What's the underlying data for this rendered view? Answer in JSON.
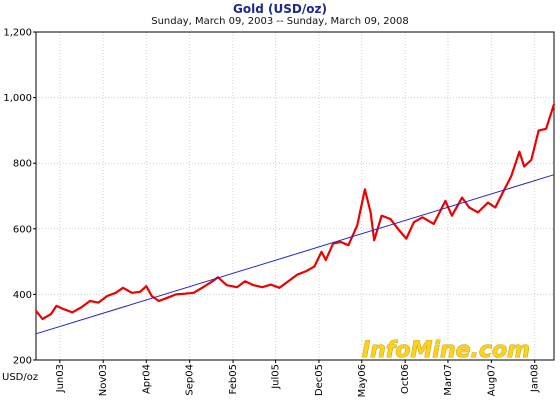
{
  "chart_data": {
    "type": "line",
    "title": "Gold (USD/oz)",
    "subtitle": "Sunday, March 09, 2003  --  Sunday, March 09, 2008",
    "ylabel": "USD/oz",
    "ylim": [
      200,
      1200
    ],
    "yticks": [
      200,
      400,
      600,
      800,
      1000,
      1200
    ],
    "ytick_labels": [
      "200",
      "400",
      "600",
      "800",
      "1,000",
      "1,200"
    ],
    "xlim": [
      "2003-03-09",
      "2008-03-09"
    ],
    "x_ticks": [
      {
        "label": "Jun03",
        "date": "2003-06-01"
      },
      {
        "label": "Nov03",
        "date": "2003-11-01"
      },
      {
        "label": "Apr04",
        "date": "2004-04-01"
      },
      {
        "label": "Sep04",
        "date": "2004-09-01"
      },
      {
        "label": "Feb05",
        "date": "2005-02-01"
      },
      {
        "label": "Jul05",
        "date": "2005-07-01"
      },
      {
        "label": "Dec05",
        "date": "2005-12-01"
      },
      {
        "label": "May06",
        "date": "2006-05-01"
      },
      {
        "label": "Oct06",
        "date": "2006-10-01"
      },
      {
        "label": "Mar07",
        "date": "2007-03-01"
      },
      {
        "label": "Aug07",
        "date": "2007-08-01"
      },
      {
        "label": "Jan08",
        "date": "2008-01-01"
      }
    ],
    "grid": true,
    "series": [
      {
        "color": "#ee0000",
        "points": [
          [
            "2003-03-09",
            350
          ],
          [
            "2003-04-01",
            325
          ],
          [
            "2003-05-01",
            340
          ],
          [
            "2003-05-20",
            365
          ],
          [
            "2003-06-15",
            355
          ],
          [
            "2003-07-15",
            345
          ],
          [
            "2003-08-15",
            360
          ],
          [
            "2003-09-15",
            380
          ],
          [
            "2003-10-15",
            375
          ],
          [
            "2003-11-15",
            395
          ],
          [
            "2003-12-15",
            405
          ],
          [
            "2004-01-10",
            420
          ],
          [
            "2004-02-10",
            405
          ],
          [
            "2004-03-10",
            408
          ],
          [
            "2004-04-01",
            425
          ],
          [
            "2004-04-20",
            395
          ],
          [
            "2004-05-15",
            380
          ],
          [
            "2004-06-15",
            390
          ],
          [
            "2004-07-15",
            400
          ],
          [
            "2004-08-15",
            402
          ],
          [
            "2004-09-15",
            405
          ],
          [
            "2004-10-15",
            420
          ],
          [
            "2004-11-20",
            440
          ],
          [
            "2004-12-10",
            452
          ],
          [
            "2005-01-10",
            428
          ],
          [
            "2005-02-15",
            422
          ],
          [
            "2005-03-15",
            440
          ],
          [
            "2005-04-15",
            428
          ],
          [
            "2005-05-15",
            422
          ],
          [
            "2005-06-15",
            430
          ],
          [
            "2005-07-15",
            420
          ],
          [
            "2005-08-15",
            440
          ],
          [
            "2005-09-15",
            460
          ],
          [
            "2005-10-15",
            470
          ],
          [
            "2005-11-15",
            485
          ],
          [
            "2005-12-10",
            530
          ],
          [
            "2005-12-25",
            505
          ],
          [
            "2006-01-20",
            555
          ],
          [
            "2006-02-15",
            560
          ],
          [
            "2006-03-15",
            550
          ],
          [
            "2006-04-15",
            610
          ],
          [
            "2006-05-12",
            720
          ],
          [
            "2006-06-01",
            650
          ],
          [
            "2006-06-14",
            565
          ],
          [
            "2006-07-10",
            640
          ],
          [
            "2006-08-10",
            630
          ],
          [
            "2006-09-10",
            595
          ],
          [
            "2006-10-05",
            570
          ],
          [
            "2006-11-01",
            620
          ],
          [
            "2006-12-01",
            635
          ],
          [
            "2007-01-10",
            615
          ],
          [
            "2007-02-20",
            685
          ],
          [
            "2007-03-15",
            640
          ],
          [
            "2007-04-20",
            695
          ],
          [
            "2007-05-15",
            665
          ],
          [
            "2007-06-15",
            650
          ],
          [
            "2007-07-20",
            680
          ],
          [
            "2007-08-15",
            665
          ],
          [
            "2007-09-10",
            710
          ],
          [
            "2007-10-10",
            760
          ],
          [
            "2007-11-08",
            835
          ],
          [
            "2007-11-25",
            790
          ],
          [
            "2007-12-20",
            810
          ],
          [
            "2008-01-15",
            900
          ],
          [
            "2008-02-10",
            905
          ],
          [
            "2008-03-09",
            980
          ]
        ]
      },
      {
        "color": "#2222cc",
        "points": [
          [
            "2003-03-09",
            280
          ],
          [
            "2008-03-09",
            765
          ]
        ]
      }
    ]
  },
  "watermark": {
    "text": "InfoMine.com",
    "fill": "#ffd21a",
    "stroke": "#b88600"
  }
}
